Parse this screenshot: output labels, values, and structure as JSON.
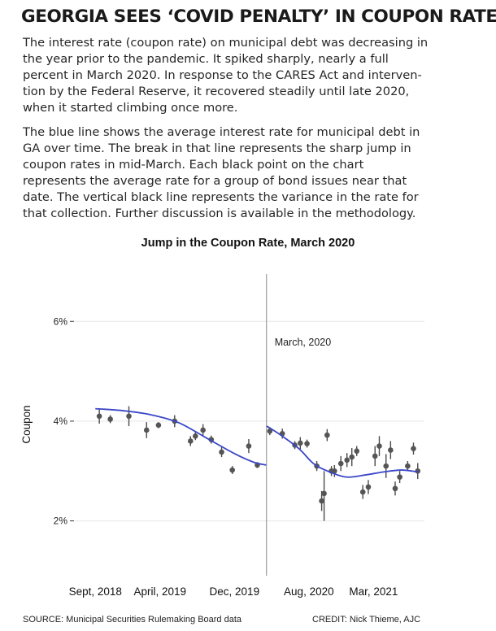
{
  "headline": "GEORGIA SEES ‘COVID PENALTY’ IN COUPON RATES",
  "paragraph1": [
    "The interest rate (coupon rate) on municipal debt was decreasing in",
    "the year prior to the pandemic. It spiked sharply, nearly a full",
    "percent in March 2020. In response to the CARES Act and interven-",
    "tion by the Federal Reserve, it recovered steadily until late 2020,",
    "when it started climbing once more."
  ],
  "paragraph2": [
    "The blue line shows the average interest rate for municipal debt in",
    "GA over time. The break in that line represents the sharp jump in",
    "coupon rates in mid-March. Each black point on the chart",
    "represents the average rate for a group of bond issues near that",
    "date. The vertical black line represents the variance in the rate for",
    "that collection. Further discussion is available in the methodology."
  ],
  "source": "SOURCE: Municipal Securities Rulemaking Board data",
  "credit": "CREDIT: Nick Thieme, AJC",
  "colors": {
    "trend_line": "#3a47c8",
    "points": "#555555",
    "event_line": "#9a9a9a",
    "grid": "#e6e6e6"
  },
  "chart_data": {
    "type": "scatter",
    "title": "Jump in the Coupon Rate, March 2020",
    "xlabel": "",
    "ylabel": "Coupon",
    "x_ticks": [
      {
        "date": "2018-09-01",
        "label": "Sept, 2018"
      },
      {
        "date": "2019-04-01",
        "label": "April, 2019"
      },
      {
        "date": "2019-12-01",
        "label": "Dec, 2019"
      },
      {
        "date": "2020-08-01",
        "label": "Aug, 2020"
      },
      {
        "date": "2021-03-01",
        "label": "Mar, 2021"
      }
    ],
    "y_ticks": [
      {
        "value": 2,
        "label": "2%"
      },
      {
        "value": 4,
        "label": "4%"
      },
      {
        "value": 6,
        "label": "6%"
      }
    ],
    "xlim": [
      "2018-06-15",
      "2021-08-15"
    ],
    "ylim": [
      0.95,
      6.95
    ],
    "grid": true,
    "legend": "none",
    "annotation": {
      "date": "2020-03-15",
      "label": "March, 2020"
    },
    "points": [
      {
        "x": "2018-09-14",
        "y": 4.1,
        "lo": 3.95,
        "hi": 4.25
      },
      {
        "x": "2018-10-20",
        "y": 4.04,
        "lo": 3.96,
        "hi": 4.12
      },
      {
        "x": "2018-12-20",
        "y": 4.1,
        "lo": 3.9,
        "hi": 4.3
      },
      {
        "x": "2019-02-16",
        "y": 3.82,
        "lo": 3.66,
        "hi": 3.98
      },
      {
        "x": "2019-03-27",
        "y": 3.92,
        "lo": 3.86,
        "hi": 3.98
      },
      {
        "x": "2019-05-19",
        "y": 4.0,
        "lo": 3.88,
        "hi": 4.12
      },
      {
        "x": "2019-07-10",
        "y": 3.6,
        "lo": 3.5,
        "hi": 3.7
      },
      {
        "x": "2019-07-26",
        "y": 3.7,
        "lo": 3.62,
        "hi": 3.78
      },
      {
        "x": "2019-08-20",
        "y": 3.82,
        "lo": 3.7,
        "hi": 3.94
      },
      {
        "x": "2019-09-16",
        "y": 3.63,
        "lo": 3.55,
        "hi": 3.71
      },
      {
        "x": "2019-10-20",
        "y": 3.38,
        "lo": 3.28,
        "hi": 3.48
      },
      {
        "x": "2019-11-24",
        "y": 3.02,
        "lo": 2.94,
        "hi": 3.1
      },
      {
        "x": "2020-01-17",
        "y": 3.5,
        "lo": 3.36,
        "hi": 3.64
      },
      {
        "x": "2020-02-14",
        "y": 3.12,
        "lo": 3.06,
        "hi": 3.18
      },
      {
        "x": "2020-03-26",
        "y": 3.8,
        "lo": 3.72,
        "hi": 3.88
      },
      {
        "x": "2020-05-06",
        "y": 3.75,
        "lo": 3.65,
        "hi": 3.85
      },
      {
        "x": "2020-06-16",
        "y": 3.52,
        "lo": 3.44,
        "hi": 3.6
      },
      {
        "x": "2020-07-04",
        "y": 3.56,
        "lo": 3.44,
        "hi": 3.68
      },
      {
        "x": "2020-07-26",
        "y": 3.55,
        "lo": 3.47,
        "hi": 3.63
      },
      {
        "x": "2020-08-27",
        "y": 3.1,
        "lo": 3.0,
        "hi": 3.2
      },
      {
        "x": "2020-09-12",
        "y": 2.4,
        "lo": 2.2,
        "hi": 2.6
      },
      {
        "x": "2020-09-20",
        "y": 2.55,
        "lo": 2.0,
        "hi": 3.0
      },
      {
        "x": "2020-09-30",
        "y": 3.72,
        "lo": 3.6,
        "hi": 3.84
      },
      {
        "x": "2020-10-14",
        "y": 3.0,
        "lo": 2.9,
        "hi": 3.1
      },
      {
        "x": "2020-10-24",
        "y": 3.0,
        "lo": 2.88,
        "hi": 3.12
      },
      {
        "x": "2020-11-14",
        "y": 3.15,
        "lo": 3.0,
        "hi": 3.3
      },
      {
        "x": "2020-12-04",
        "y": 3.22,
        "lo": 3.08,
        "hi": 3.36
      },
      {
        "x": "2020-12-20",
        "y": 3.28,
        "lo": 3.1,
        "hi": 3.46
      },
      {
        "x": "2021-01-05",
        "y": 3.4,
        "lo": 3.3,
        "hi": 3.5
      },
      {
        "x": "2021-01-25",
        "y": 2.58,
        "lo": 2.44,
        "hi": 2.72
      },
      {
        "x": "2021-02-12",
        "y": 2.68,
        "lo": 2.54,
        "hi": 2.82
      },
      {
        "x": "2021-03-06",
        "y": 3.3,
        "lo": 3.1,
        "hi": 3.5
      },
      {
        "x": "2021-03-20",
        "y": 3.5,
        "lo": 3.3,
        "hi": 3.7
      },
      {
        "x": "2021-04-11",
        "y": 3.1,
        "lo": 2.86,
        "hi": 3.34
      },
      {
        "x": "2021-04-26",
        "y": 3.42,
        "lo": 3.24,
        "hi": 3.6
      },
      {
        "x": "2021-05-11",
        "y": 2.65,
        "lo": 2.51,
        "hi": 2.79
      },
      {
        "x": "2021-05-26",
        "y": 2.88,
        "lo": 2.76,
        "hi": 3.0
      },
      {
        "x": "2021-06-21",
        "y": 3.1,
        "lo": 3.0,
        "hi": 3.2
      },
      {
        "x": "2021-07-10",
        "y": 3.45,
        "lo": 3.33,
        "hi": 3.57
      },
      {
        "x": "2021-07-24",
        "y": 3.0,
        "lo": 2.84,
        "hi": 3.16
      }
    ],
    "trend": [
      [
        {
          "x": "2018-09-01",
          "y": 4.25
        },
        {
          "x": "2018-12-01",
          "y": 4.21
        },
        {
          "x": "2019-03-01",
          "y": 4.13
        },
        {
          "x": "2019-06-01",
          "y": 3.97
        },
        {
          "x": "2019-09-01",
          "y": 3.66
        },
        {
          "x": "2019-12-01",
          "y": 3.35
        },
        {
          "x": "2020-02-01",
          "y": 3.18
        },
        {
          "x": "2020-03-14",
          "y": 3.12
        }
      ],
      [
        {
          "x": "2020-03-16",
          "y": 3.9
        },
        {
          "x": "2020-05-01",
          "y": 3.72
        },
        {
          "x": "2020-07-01",
          "y": 3.44
        },
        {
          "x": "2020-08-16",
          "y": 3.15
        },
        {
          "x": "2020-10-01",
          "y": 3.0
        },
        {
          "x": "2020-12-01",
          "y": 2.88
        },
        {
          "x": "2021-02-01",
          "y": 2.92
        },
        {
          "x": "2021-04-01",
          "y": 2.98
        },
        {
          "x": "2021-06-01",
          "y": 3.02
        },
        {
          "x": "2021-07-26",
          "y": 2.98
        }
      ]
    ]
  }
}
